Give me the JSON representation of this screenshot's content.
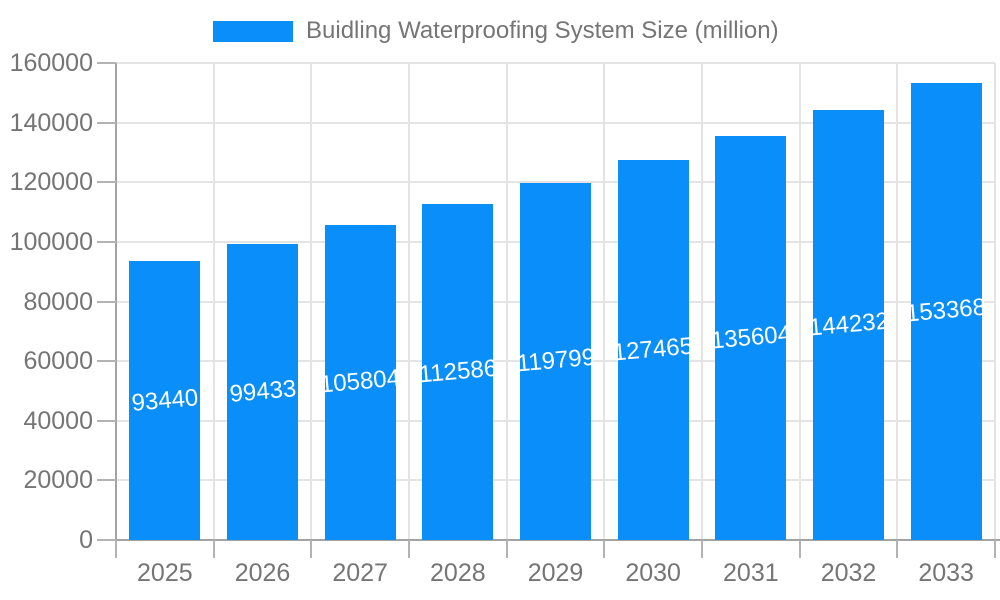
{
  "legend": {
    "label": "Buidling Waterproofing System Size (million)"
  },
  "colors": {
    "bar": "#0a8ef9",
    "axis_text": "#757575",
    "axis_line": "#a3a3a3",
    "tick": "#b3b3b3",
    "grid": "#e4e4e4",
    "bar_label": "#ffffff",
    "background": "#ffffff"
  },
  "chart_data": {
    "type": "bar",
    "categories": [
      "2025",
      "2026",
      "2027",
      "2028",
      "2029",
      "2030",
      "2031",
      "2032",
      "2033"
    ],
    "series": [
      {
        "name": "Buidling Waterproofing System Size (million)",
        "values": [
          93440,
          99433,
          105804,
          112586,
          119799,
          127465,
          135604,
          144232,
          153368
        ]
      }
    ],
    "title": "",
    "xlabel": "",
    "ylabel": "",
    "ylim": [
      0,
      160000
    ],
    "ytick_step": 20000,
    "yticks": [
      0,
      20000,
      40000,
      60000,
      80000,
      100000,
      120000,
      140000,
      160000
    ],
    "grid": true,
    "legend_position": "top",
    "bar_value_labels": true
  }
}
